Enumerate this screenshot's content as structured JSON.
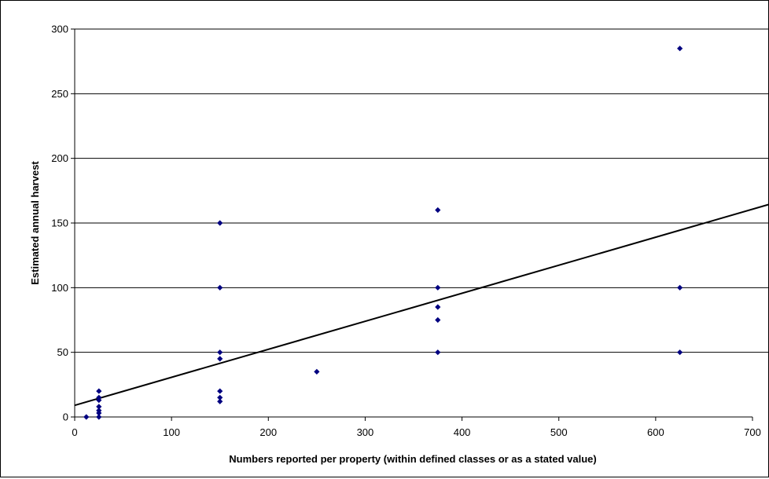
{
  "chart_data": {
    "type": "scatter",
    "title": "",
    "xlabel": "Numbers reported per property (within defined classes or as a stated value)",
    "ylabel": "Estimated annual harvest",
    "xlim": [
      0,
      700
    ],
    "ylim": [
      0,
      300
    ],
    "x_ticks": [
      0,
      100,
      200,
      300,
      400,
      500,
      600,
      700
    ],
    "y_ticks": [
      0,
      50,
      100,
      150,
      200,
      250,
      300
    ],
    "grid": "horizontal",
    "legend": "none",
    "marker_color": "#000080",
    "trendline": {
      "type": "linear",
      "color": "#000000",
      "x": [
        0,
        720
      ],
      "y": [
        9,
        165
      ]
    },
    "points": [
      {
        "x": 12,
        "y": 0
      },
      {
        "x": 25,
        "y": 20
      },
      {
        "x": 25,
        "y": 15
      },
      {
        "x": 25,
        "y": 13
      },
      {
        "x": 25,
        "y": 8
      },
      {
        "x": 25,
        "y": 5
      },
      {
        "x": 25,
        "y": 3
      },
      {
        "x": 25,
        "y": 0
      },
      {
        "x": 150,
        "y": 150
      },
      {
        "x": 150,
        "y": 100
      },
      {
        "x": 150,
        "y": 50
      },
      {
        "x": 150,
        "y": 45
      },
      {
        "x": 150,
        "y": 20
      },
      {
        "x": 150,
        "y": 15
      },
      {
        "x": 150,
        "y": 12
      },
      {
        "x": 250,
        "y": 35
      },
      {
        "x": 375,
        "y": 160
      },
      {
        "x": 375,
        "y": 100
      },
      {
        "x": 375,
        "y": 85
      },
      {
        "x": 375,
        "y": 75
      },
      {
        "x": 375,
        "y": 50
      },
      {
        "x": 625,
        "y": 285
      },
      {
        "x": 625,
        "y": 100
      },
      {
        "x": 625,
        "y": 50
      }
    ]
  }
}
